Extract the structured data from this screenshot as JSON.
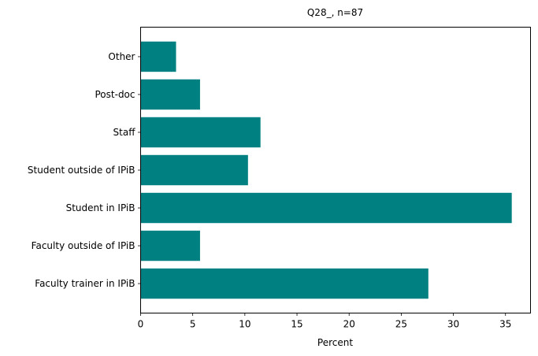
{
  "chart_data": {
    "type": "bar",
    "orientation": "horizontal",
    "title": "Q28_, n=87",
    "xlabel": "Percent",
    "ylabel": "",
    "categories": [
      "Faculty trainer in IPiB",
      "Faculty outside of IPiB",
      "Student in IPiB",
      "Student outside of IPiB",
      "Staff",
      "Post-doc",
      "Other"
    ],
    "values": [
      27.6,
      5.7,
      35.6,
      10.3,
      11.5,
      5.7,
      3.4
    ],
    "xlim": [
      0,
      37.4
    ],
    "xticks": [
      0,
      5,
      10,
      15,
      20,
      25,
      30,
      35
    ],
    "grid": false,
    "bar_color": "#008080"
  }
}
